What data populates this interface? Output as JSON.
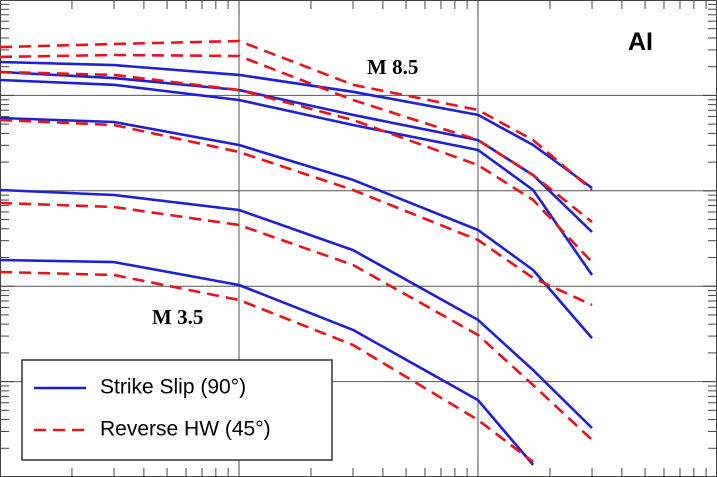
{
  "chart_data": {
    "type": "line",
    "panel_label": "AI",
    "annotations": [
      "M 8.5",
      "M 3.5"
    ],
    "xscale": "log",
    "yscale": "log",
    "xlim": [
      0.1,
      100
    ],
    "ylim": [
      0.0001,
      10
    ],
    "xticks": [
      1,
      10
    ],
    "yticks": [
      0.001,
      0.01,
      0.1,
      1
    ],
    "grid": true,
    "legend": "lower left",
    "x": [
      0.1,
      0.3,
      1,
      3,
      10,
      17,
      30
    ],
    "series": [
      {
        "name": "Strike Slip (90°)",
        "color": "#1f1fd6",
        "dash": "solid",
        "lines": [
          [
            2.24,
            2.08,
            1.64,
            1.09,
            0.624,
            0.302,
            0.107
          ],
          [
            1.76,
            1.52,
            1.14,
            0.624,
            0.34,
            0.146,
            0.037
          ],
          [
            1.45,
            1.29,
            0.895,
            0.49,
            0.268,
            0.102,
            0.0131
          ],
          [
            0.58,
            0.526,
            0.302,
            0.13,
            0.0388,
            0.0148,
            0.00286
          ],
          [
            0.102,
            0.0903,
            0.0629,
            0.0239,
            0.00443,
            0.00132,
            0.000326
          ],
          [
            0.0188,
            0.0179,
            0.0103,
            0.00348,
            0.00064,
            0.000134,
            null
          ]
        ]
      },
      {
        "name": "Reverse HW (45°)",
        "color": "#e8141c",
        "dash": "dashed",
        "lines": [
          [
            3.21,
            3.46,
            3.72,
            1.29,
            0.703,
            0.34,
            0.102
          ],
          [
            2.53,
            2.65,
            2.59,
            0.895,
            0.34,
            0.146,
            0.0471
          ],
          [
            1.76,
            1.64,
            1.14,
            0.552,
            0.186,
            0.0801,
            0.0179
          ],
          [
            0.552,
            0.49,
            0.255,
            0.102,
            0.0305,
            0.0122,
            0.00635
          ],
          [
            0.0745,
            0.0676,
            0.0438,
            0.0167,
            0.00308,
            0.00092,
            0.000245
          ],
          [
            0.0141,
            0.0131,
            0.00716,
            0.00242,
            0.000396,
            0.000144,
            null
          ]
        ]
      }
    ]
  }
}
